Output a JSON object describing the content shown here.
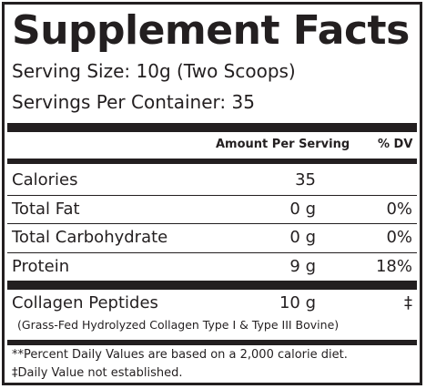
{
  "title": "Supplement Facts",
  "serving_size": "Serving Size: 10g (Two Scoops)",
  "servings_per_container": "Servings Per Container: 35",
  "header": {
    "amount": "Amount Per Serving",
    "dv": "% DV"
  },
  "rows": [
    {
      "label": "Calories",
      "amount": "35",
      "dv": ""
    },
    {
      "label": "Total Fat",
      "amount": "0 g",
      "dv": "0%"
    },
    {
      "label": "Total Carbohydrate",
      "amount": "0 g",
      "dv": "0%"
    },
    {
      "label": "Protein",
      "amount": "9 g",
      "dv": "18%"
    }
  ],
  "proprietary": {
    "label": "Collagen Peptides",
    "amount": "10 g",
    "dv": "‡",
    "detail": "(Grass-Fed Hydrolyzed Collagen Type I & Type III Bovine)"
  },
  "footnotes": [
    "**Percent Daily Values are based on a 2,000 calorie diet.",
    "‡Daily Value not established."
  ]
}
